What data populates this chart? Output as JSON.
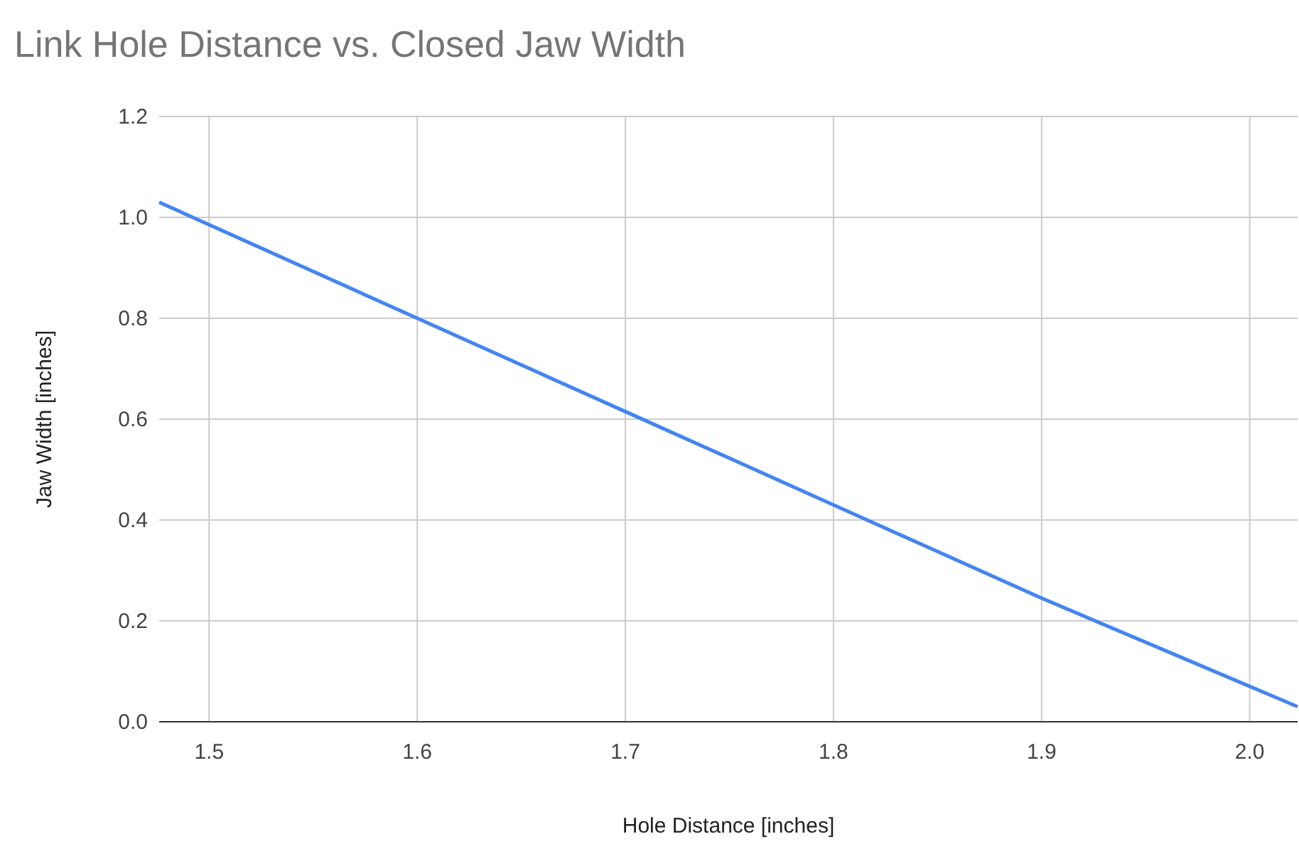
{
  "chart_data": {
    "type": "line",
    "title": "Link Hole Distance vs. Closed Jaw Width",
    "xlabel": "Hole Distance [inches]",
    "ylabel": "Jaw Width [inches]",
    "x": [
      1.476,
      1.6,
      1.7,
      1.8,
      1.9,
      2.023
    ],
    "series": [
      {
        "color": "#4285f4",
        "values": [
          1.03,
          0.8,
          0.615,
          0.43,
          0.245,
          0.03
        ]
      }
    ],
    "xlim": [
      1.476,
      2.023
    ],
    "xticks": [
      {
        "value": 1.5,
        "label": "1.5"
      },
      {
        "value": 1.6,
        "label": "1.6"
      },
      {
        "value": 1.7,
        "label": "1.7"
      },
      {
        "value": 1.8,
        "label": "1.8"
      },
      {
        "value": 1.9,
        "label": "1.9"
      },
      {
        "value": 2.0,
        "label": "2.0"
      }
    ],
    "ylim": [
      0,
      1.2
    ],
    "yticks": [
      {
        "value": 0,
        "label": "0.0"
      },
      {
        "value": 0.2,
        "label": "0.2"
      },
      {
        "value": 0.4,
        "label": "0.4"
      },
      {
        "value": 0.6,
        "label": "0.6"
      },
      {
        "value": 0.8,
        "label": "0.8"
      },
      {
        "value": 1.0,
        "label": "1.0"
      },
      {
        "value": 1.2,
        "label": "1.2"
      }
    ],
    "grid": true,
    "marker": "none",
    "line_style": "solid"
  }
}
